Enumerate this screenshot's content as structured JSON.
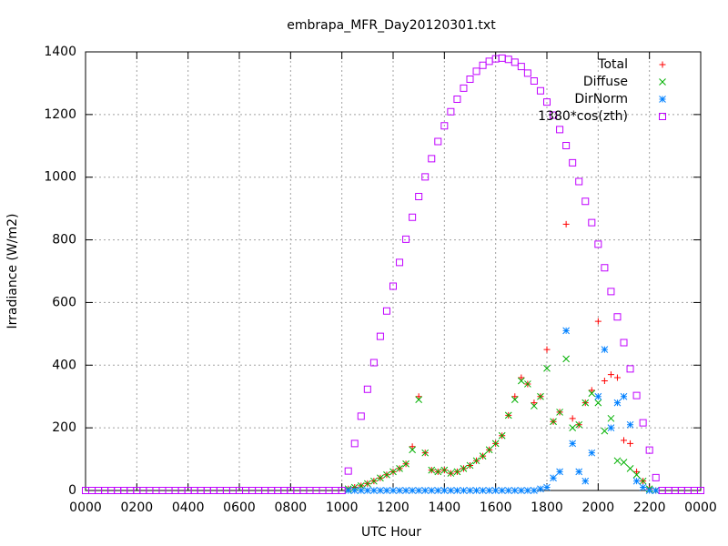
{
  "chart_data": {
    "type": "scatter",
    "title": "embrapa_MFR_Day20120301.txt",
    "x_label": "UTC Hour",
    "y_label": "Irradiance (W/m2)",
    "xlim": [
      0,
      24
    ],
    "xticks": [
      {
        "value": 0,
        "label": "0000"
      },
      {
        "value": 2,
        "label": "0200"
      },
      {
        "value": 4,
        "label": "0400"
      },
      {
        "value": 6,
        "label": "0600"
      },
      {
        "value": 8,
        "label": "0800"
      },
      {
        "value": 10,
        "label": "1000"
      },
      {
        "value": 12,
        "label": "1200"
      },
      {
        "value": 14,
        "label": "1400"
      },
      {
        "value": 16,
        "label": "1600"
      },
      {
        "value": 18,
        "label": "1800"
      },
      {
        "value": 20,
        "label": "2000"
      },
      {
        "value": 22,
        "label": "2200"
      },
      {
        "value": 24,
        "label": "0000"
      }
    ],
    "ylim": [
      0,
      1400
    ],
    "yticks": [
      0,
      200,
      400,
      600,
      800,
      1000,
      1200,
      1400
    ],
    "grid": true,
    "legend": "top-right",
    "series": [
      {
        "name": "Total",
        "color": "#ff0000",
        "marker": "plus",
        "x": [
          10.25,
          10.5,
          10.75,
          11,
          11.25,
          11.5,
          11.75,
          12,
          12.25,
          12.5,
          12.75,
          13,
          13.25,
          13.5,
          13.75,
          14,
          14.25,
          14.5,
          14.75,
          15,
          15.25,
          15.5,
          15.75,
          16,
          16.25,
          16.5,
          16.75,
          17,
          17.25,
          17.5,
          17.75,
          18,
          18.25,
          18.5,
          18.75,
          19,
          19.25,
          19.5,
          19.75,
          20,
          20.25,
          20.5,
          20.75,
          21,
          21.25,
          21.5,
          21.75,
          22,
          22.25
        ],
        "values": [
          5,
          10,
          15,
          22,
          30,
          40,
          50,
          60,
          70,
          85,
          140,
          300,
          120,
          65,
          60,
          65,
          55,
          60,
          70,
          80,
          95,
          110,
          130,
          150,
          175,
          240,
          300,
          360,
          340,
          280,
          300,
          450,
          220,
          250,
          850,
          230,
          210,
          280,
          320,
          540,
          350,
          370,
          360,
          160,
          150,
          60,
          30,
          5,
          0
        ]
      },
      {
        "name": "Diffuse",
        "color": "#00b000",
        "marker": "cross",
        "x": [
          10.25,
          10.5,
          10.75,
          11,
          11.25,
          11.5,
          11.75,
          12,
          12.25,
          12.5,
          12.75,
          13,
          13.25,
          13.5,
          13.75,
          14,
          14.25,
          14.5,
          14.75,
          15,
          15.25,
          15.5,
          15.75,
          16,
          16.25,
          16.5,
          16.75,
          17,
          17.25,
          17.5,
          17.75,
          18,
          18.25,
          18.5,
          18.75,
          19,
          19.25,
          19.5,
          19.75,
          20,
          20.25,
          20.5,
          20.75,
          21,
          21.25,
          21.5,
          21.75,
          22,
          22.25
        ],
        "values": [
          5,
          10,
          15,
          22,
          30,
          40,
          50,
          60,
          70,
          85,
          130,
          290,
          120,
          65,
          60,
          65,
          55,
          60,
          70,
          80,
          95,
          110,
          130,
          150,
          175,
          240,
          290,
          350,
          340,
          270,
          300,
          390,
          220,
          250,
          420,
          200,
          210,
          280,
          310,
          280,
          190,
          230,
          95,
          90,
          70,
          50,
          30,
          5,
          0
        ]
      },
      {
        "name": "DirNorm",
        "color": "#0080ff",
        "marker": "star",
        "x": [
          10.25,
          10.5,
          10.75,
          11,
          11.25,
          11.5,
          11.75,
          12,
          12.25,
          12.5,
          12.75,
          13,
          13.25,
          13.5,
          13.75,
          14,
          14.25,
          14.5,
          14.75,
          15,
          15.25,
          15.5,
          15.75,
          16,
          16.25,
          16.5,
          16.75,
          17,
          17.25,
          17.5,
          17.75,
          18,
          18.25,
          18.5,
          18.75,
          19,
          19.25,
          19.5,
          19.75,
          20,
          20.25,
          20.5,
          20.75,
          21,
          21.25,
          21.5,
          21.75,
          22,
          22.25
        ],
        "values": [
          0,
          0,
          0,
          0,
          0,
          0,
          0,
          0,
          0,
          0,
          0,
          0,
          0,
          0,
          0,
          0,
          0,
          0,
          0,
          0,
          0,
          0,
          0,
          0,
          0,
          0,
          0,
          0,
          0,
          0,
          5,
          10,
          40,
          60,
          510,
          150,
          60,
          30,
          120,
          300,
          450,
          200,
          280,
          300,
          210,
          30,
          10,
          0,
          0
        ]
      },
      {
        "name": "1380*cos(zth)",
        "color": "#c000ff",
        "marker": "square",
        "x": [
          0,
          0.25,
          0.5,
          0.75,
          1,
          1.25,
          1.5,
          1.75,
          2,
          2.25,
          2.5,
          2.75,
          3,
          3.25,
          3.5,
          3.75,
          4,
          4.25,
          4.5,
          4.75,
          5,
          5.25,
          5.5,
          5.75,
          6,
          6.25,
          6.5,
          6.75,
          7,
          7.25,
          7.5,
          7.75,
          8,
          8.25,
          8.5,
          8.75,
          9,
          9.25,
          9.5,
          9.75,
          10,
          10.25,
          10.5,
          10.75,
          11,
          11.25,
          11.5,
          11.75,
          12,
          12.25,
          12.5,
          12.75,
          13,
          13.25,
          13.5,
          13.75,
          14,
          14.25,
          14.5,
          14.75,
          15,
          15.25,
          15.5,
          15.75,
          16,
          16.25,
          16.5,
          16.75,
          17,
          17.25,
          17.5,
          17.75,
          18,
          18.25,
          18.5,
          18.75,
          19,
          19.25,
          19.5,
          19.75,
          20,
          20.25,
          20.5,
          20.75,
          21,
          21.25,
          21.5,
          21.75,
          22,
          22.25,
          22.5,
          22.75,
          23,
          23.25,
          23.5,
          23.75,
          24
        ],
        "values": [
          0,
          0,
          0,
          0,
          0,
          0,
          0,
          0,
          0,
          0,
          0,
          0,
          0,
          0,
          0,
          0,
          0,
          0,
          0,
          0,
          0,
          0,
          0,
          0,
          0,
          0,
          0,
          0,
          0,
          0,
          0,
          0,
          0,
          0,
          0,
          0,
          0,
          0,
          0,
          0,
          0,
          62,
          150,
          237,
          323,
          408,
          492,
          573,
          652,
          728,
          802,
          872,
          938,
          1001,
          1059,
          1114,
          1164,
          1209,
          1249,
          1284,
          1313,
          1338,
          1357,
          1370,
          1378,
          1380,
          1376,
          1367,
          1353,
          1332,
          1307,
          1276,
          1240,
          1198,
          1152,
          1101,
          1046,
          986,
          923,
          855,
          786,
          711,
          635,
          554,
          472,
          388,
          303,
          216,
          129,
          41,
          0,
          0,
          0,
          0,
          0,
          0,
          0
        ]
      }
    ]
  }
}
